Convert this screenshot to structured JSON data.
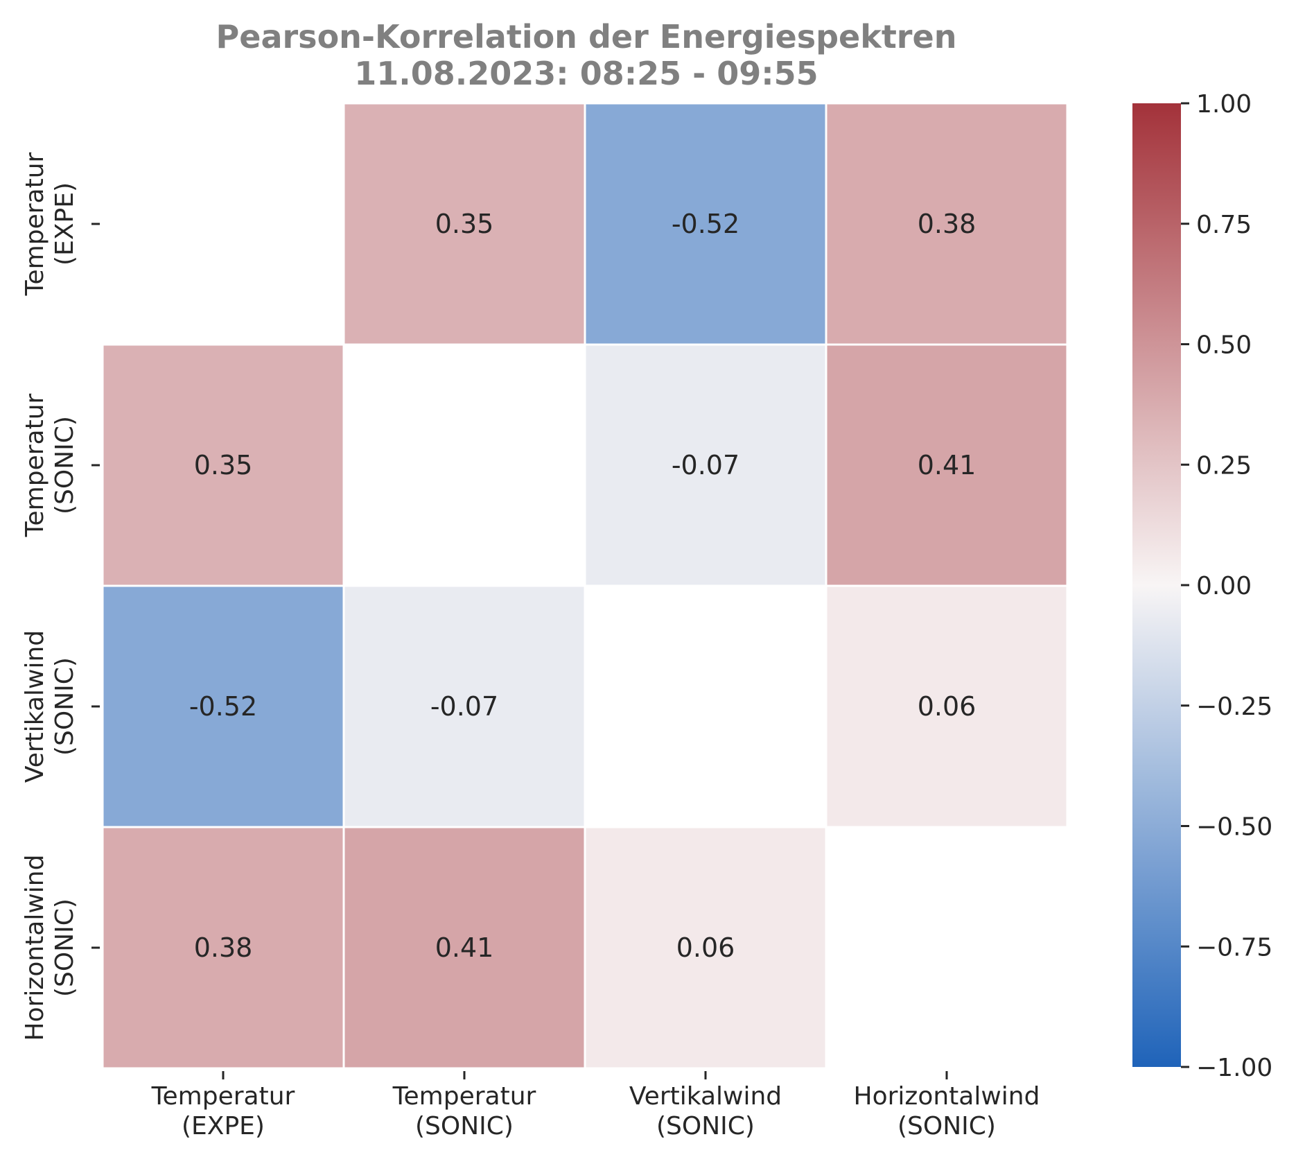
{
  "chart_data": {
    "type": "heatmap",
    "title": "Pearson-Korrelation der Energiespektren",
    "subtitle": "11.08.2023:  08:25 -  09:55",
    "row_labels": [
      [
        "Temperatur",
        "(EXPE)"
      ],
      [
        "Temperatur",
        "(SONIC)"
      ],
      [
        "Vertikalwind",
        "(SONIC)"
      ],
      [
        "Horizontalwind",
        "(SONIC)"
      ]
    ],
    "col_labels": [
      [
        "Temperatur",
        "(EXPE)"
      ],
      [
        "Temperatur",
        "(SONIC)"
      ],
      [
        "Vertikalwind",
        "(SONIC)"
      ],
      [
        "Horizontalwind",
        "(SONIC)"
      ]
    ],
    "values": [
      [
        null,
        0.35,
        -0.52,
        0.38
      ],
      [
        0.35,
        null,
        -0.07,
        0.41
      ],
      [
        -0.52,
        -0.07,
        null,
        0.06
      ],
      [
        0.38,
        0.41,
        0.06,
        null
      ]
    ],
    "value_labels": [
      [
        "",
        "0.35",
        "-0.52",
        "0.38"
      ],
      [
        "0.35",
        "",
        "-0.07",
        "0.41"
      ],
      [
        "-0.52",
        "-0.07",
        "",
        "0.06"
      ],
      [
        "0.38",
        "0.41",
        "0.06",
        ""
      ]
    ],
    "colorbar": {
      "min": -1.0,
      "max": 1.0,
      "ticks": [
        1.0,
        0.75,
        0.5,
        0.25,
        0.0,
        -0.25,
        -0.5,
        -0.75,
        -1.0
      ],
      "tick_labels": [
        "1.00",
        "0.75",
        "0.50",
        "0.25",
        "0.00",
        "−0.25",
        "−0.50",
        "−0.75",
        "−1.00"
      ]
    },
    "colormap": {
      "negative_end": "#1f63b9",
      "center": "#f8f5f5",
      "positive_end": "#a3323a"
    },
    "diagonal_masked": true,
    "grid": false
  }
}
